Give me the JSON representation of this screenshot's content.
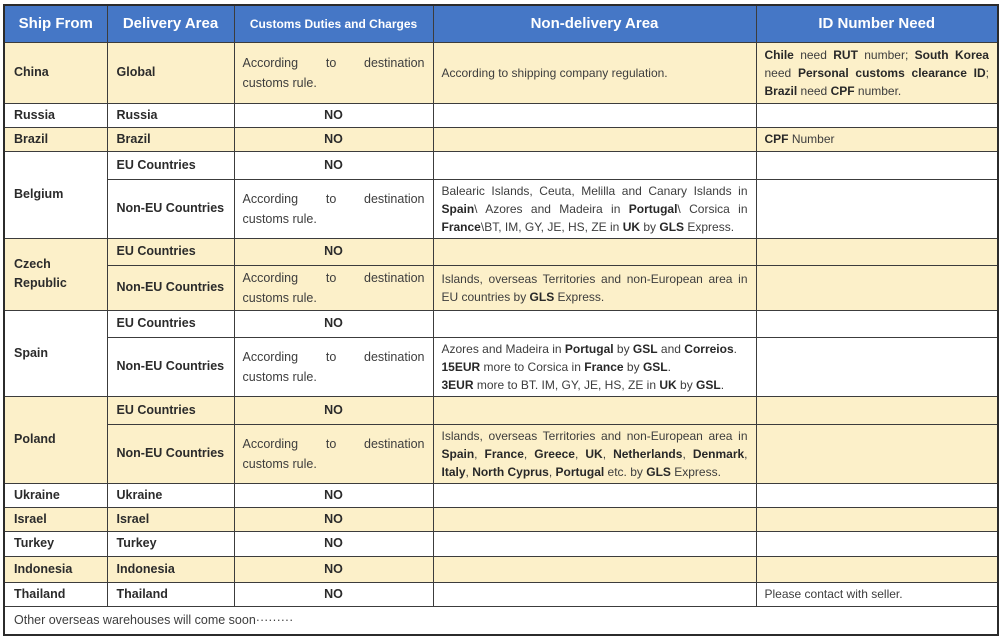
{
  "header": {
    "columns": [
      "Ship From",
      "Delivery Area",
      "Customs Duties and Charges",
      "Non-delivery Area",
      "ID Number Need"
    ]
  },
  "colors": {
    "header_bg": "#4577C6",
    "header_text": "#FFFFFF",
    "row_shade": "#FCF0C9",
    "border": "#3C3C3C",
    "body_text": "#3D3D3D"
  },
  "rows": {
    "china": {
      "ship_from": "China",
      "delivery_area": "Global",
      "customs": "According to destination customs rule.",
      "non_delivery": "According to shipping company regulation.",
      "id_need": [
        {
          "t": "Chile",
          "b": true
        },
        {
          "t": " need "
        },
        {
          "t": "RUT",
          "b": true
        },
        {
          "t": " number; "
        },
        {
          "t": "South Korea",
          "b": true
        },
        {
          "t": " need "
        },
        {
          "t": "Personal customs clearance ID",
          "b": true
        },
        {
          "t": "; "
        },
        {
          "t": "Brazil",
          "b": true
        },
        {
          "t": " need "
        },
        {
          "t": "CPF",
          "b": true
        },
        {
          "t": " number."
        }
      ]
    },
    "russia": {
      "ship_from": "Russia",
      "delivery_area": "Russia",
      "customs": "NO"
    },
    "brazil": {
      "ship_from": "Brazil",
      "delivery_area": "Brazil",
      "customs": "NO",
      "id_need": [
        {
          "t": "CPF",
          "b": true
        },
        {
          "t": " Number"
        }
      ]
    },
    "belgium": {
      "ship_from": "Belgium",
      "eu": {
        "delivery_area": "EU Countries",
        "customs": "NO"
      },
      "non_eu": {
        "delivery_area": "Non-EU Countries",
        "customs": "According to destination customs rule.",
        "non_delivery": [
          {
            "t": "Balearic Islands, Ceuta, Melilla and Canary Islands in "
          },
          {
            "t": "Spain",
            "b": true
          },
          {
            "t": "\\ Azores and Madeira in "
          },
          {
            "t": "Portugal",
            "b": true
          },
          {
            "t": "\\ Corsica in "
          },
          {
            "t": "France",
            "b": true
          },
          {
            "t": "\\BT, IM, GY, JE, HS, ZE in "
          },
          {
            "t": "UK",
            "b": true
          },
          {
            "t": " by "
          },
          {
            "t": "GLS",
            "b": true
          },
          {
            "t": " Express."
          }
        ]
      }
    },
    "czech": {
      "ship_from": "Czech Republic",
      "eu": {
        "delivery_area": "EU Countries",
        "customs": "NO"
      },
      "non_eu": {
        "delivery_area": "Non-EU Countries",
        "customs": "According to destination customs rule.",
        "non_delivery": [
          {
            "t": "Islands, overseas Territories and non-European area in EU countries by "
          },
          {
            "t": "GLS",
            "b": true
          },
          {
            "t": " Express."
          }
        ]
      }
    },
    "spain": {
      "ship_from": "Spain",
      "eu": {
        "delivery_area": "EU Countries",
        "customs": "NO"
      },
      "non_eu": {
        "delivery_area": "Non-EU Countries",
        "customs": "According to destination customs rule.",
        "non_delivery": [
          {
            "t": "Azores and Madeira in "
          },
          {
            "t": "Portugal",
            "b": true
          },
          {
            "t": " by "
          },
          {
            "t": "GSL",
            "b": true
          },
          {
            "t": " and "
          },
          {
            "t": "Correios",
            "b": true
          },
          {
            "t": ".\n"
          },
          {
            "t": "15EUR",
            "b": true
          },
          {
            "t": " more to Corsica in "
          },
          {
            "t": "France",
            "b": true
          },
          {
            "t": " by "
          },
          {
            "t": "GSL",
            "b": true
          },
          {
            "t": ".\n"
          },
          {
            "t": "3EUR",
            "b": true
          },
          {
            "t": " more to BT. IM, GY, JE, HS, ZE in "
          },
          {
            "t": "UK",
            "b": true
          },
          {
            "t": " by "
          },
          {
            "t": "GSL",
            "b": true
          },
          {
            "t": "."
          }
        ]
      }
    },
    "poland": {
      "ship_from": "Poland",
      "eu": {
        "delivery_area": "EU Countries",
        "customs": "NO"
      },
      "non_eu": {
        "delivery_area": "Non-EU Countries",
        "customs": "According to destination customs rule.",
        "non_delivery": [
          {
            "t": "Islands, overseas Territories and non-European area in "
          },
          {
            "t": "Spain",
            "b": true
          },
          {
            "t": ", "
          },
          {
            "t": "France",
            "b": true
          },
          {
            "t": ", "
          },
          {
            "t": "Greece",
            "b": true
          },
          {
            "t": ", "
          },
          {
            "t": "UK",
            "b": true
          },
          {
            "t": ", "
          },
          {
            "t": "Netherlands",
            "b": true
          },
          {
            "t": ", "
          },
          {
            "t": "Denmark",
            "b": true
          },
          {
            "t": ", "
          },
          {
            "t": "Italy",
            "b": true
          },
          {
            "t": ", "
          },
          {
            "t": "North Cyprus",
            "b": true
          },
          {
            "t": ", "
          },
          {
            "t": "Portugal",
            "b": true
          },
          {
            "t": " etc. by "
          },
          {
            "t": "GLS",
            "b": true
          },
          {
            "t": " Express."
          }
        ]
      }
    },
    "ukraine": {
      "ship_from": "Ukraine",
      "delivery_area": "Ukraine",
      "customs": "NO"
    },
    "israel": {
      "ship_from": "Israel",
      "delivery_area": "Israel",
      "customs": "NO"
    },
    "turkey": {
      "ship_from": "Turkey",
      "delivery_area": "Turkey",
      "customs": "NO"
    },
    "indonesia": {
      "ship_from": "Indonesia",
      "delivery_area": "Indonesia",
      "customs": "NO"
    },
    "thailand": {
      "ship_from": "Thailand",
      "delivery_area": "Thailand",
      "customs": "NO",
      "id_need_plain": "Please contact with seller."
    }
  },
  "footer": {
    "text": "Other overseas warehouses will come soon·········"
  }
}
